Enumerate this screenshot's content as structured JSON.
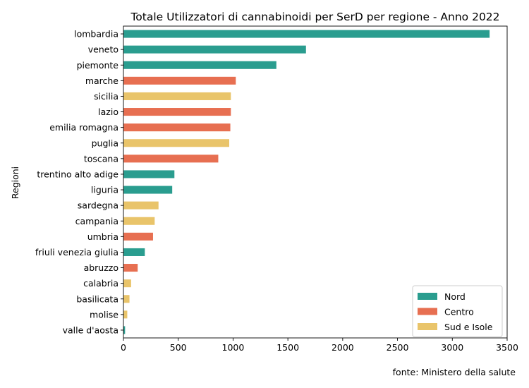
{
  "chart_data": {
    "type": "bar",
    "orientation": "horizontal",
    "title": "Totale Utilizzatori di cannabinoidi per SerD per regione - Anno 2022",
    "xlabel": "",
    "ylabel": "Regioni",
    "xlim": [
      0,
      3500
    ],
    "xticks": [
      0,
      500,
      1000,
      1500,
      2000,
      2500,
      3000,
      3500
    ],
    "grid": false,
    "legend_position": "bottom-right",
    "source": "fonte: Ministero della salute",
    "groups": [
      {
        "name": "Nord",
        "color": "#2a9d8f"
      },
      {
        "name": "Centro",
        "color": "#e76f51"
      },
      {
        "name": "Sud e Isole",
        "color": "#e9c46a"
      }
    ],
    "bars": [
      {
        "category": "lombardia",
        "value": 3340,
        "group": "Nord"
      },
      {
        "category": "veneto",
        "value": 1665,
        "group": "Nord"
      },
      {
        "category": "piemonte",
        "value": 1395,
        "group": "Nord"
      },
      {
        "category": "marche",
        "value": 1025,
        "group": "Centro"
      },
      {
        "category": "sicilia",
        "value": 980,
        "group": "Sud e Isole"
      },
      {
        "category": "lazio",
        "value": 980,
        "group": "Centro"
      },
      {
        "category": "emilia romagna",
        "value": 975,
        "group": "Centro"
      },
      {
        "category": "puglia",
        "value": 965,
        "group": "Sud e Isole"
      },
      {
        "category": "toscana",
        "value": 865,
        "group": "Centro"
      },
      {
        "category": "trentino alto adige",
        "value": 465,
        "group": "Nord"
      },
      {
        "category": "liguria",
        "value": 445,
        "group": "Nord"
      },
      {
        "category": "sardegna",
        "value": 320,
        "group": "Sud e Isole"
      },
      {
        "category": "campania",
        "value": 285,
        "group": "Sud e Isole"
      },
      {
        "category": "umbria",
        "value": 270,
        "group": "Centro"
      },
      {
        "category": "friuli venezia giulia",
        "value": 195,
        "group": "Nord"
      },
      {
        "category": "abruzzo",
        "value": 130,
        "group": "Centro"
      },
      {
        "category": "calabria",
        "value": 70,
        "group": "Sud e Isole"
      },
      {
        "category": "basilicata",
        "value": 55,
        "group": "Sud e Isole"
      },
      {
        "category": "molise",
        "value": 35,
        "group": "Sud e Isole"
      },
      {
        "category": "valle d'aosta",
        "value": 15,
        "group": "Nord"
      }
    ]
  }
}
